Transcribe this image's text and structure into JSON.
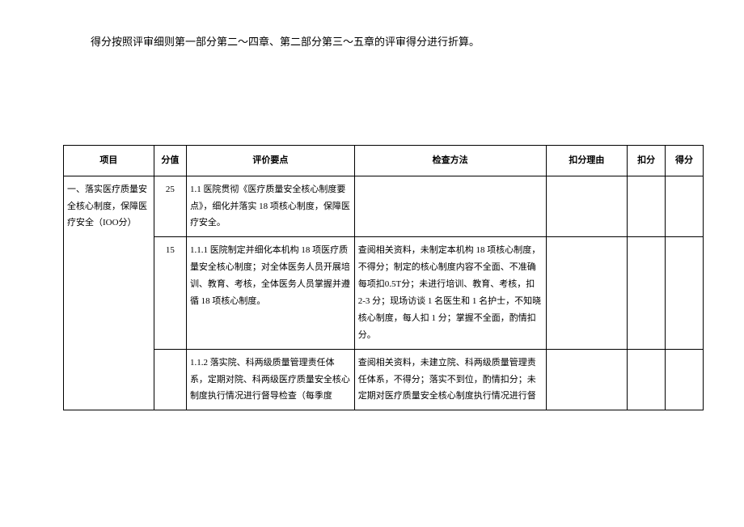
{
  "intro": "得分按照评审细则第一部分第二～四章、第二部分第三～五章的评审得分进行折算。",
  "headers": {
    "item": "项目",
    "score": "分值",
    "points": "评价要点",
    "method": "检查方法",
    "reason": "扣分理由",
    "deduct": "扣分",
    "get": "得分"
  },
  "rows": {
    "r1": {
      "item": "一、落实医疗质量安全核心制度，保障医疗安全（IOO分）",
      "score": "25",
      "points": "1.1 医院贯彻《医疗质量安全核心制度要点》，细化并落实 18 项核心制度，保障医疗安全。",
      "method": "",
      "reason": "",
      "deduct": "",
      "get": ""
    },
    "r2": {
      "item": "",
      "score": "15",
      "points": "1.1.1 医院制定并细化本机构 18 项医疗质量安全核心制度；对全体医务人员开展培训、教育、考核，全体医务人员掌握并遵循 18 项核心制度。",
      "method": "查阅相关资料，未制定本机构 18 项核心制度，不得分；制定的核心制度内容不全面、不准确每项扣0.5T分；未进行培训、教育、考核，扣 2-3 分；现场访谈 1 名医生和 1 名护士，不知晓核心制度，每人扣 1 分；掌握不全面，酌情扣分。",
      "reason": "",
      "deduct": "",
      "get": ""
    },
    "r3": {
      "item": "",
      "score": "",
      "points": "1.1.2 落实院、科两级质量管理责任体系，定期对院、科两级医疗质量安全核心制度执行情况进行督导检查（每季度",
      "method": "查阅相关资料，未建立院、科两级质量管理责任体系，不得分；落实不到位，酌情扣分；未定期对医疗质量安全核心制度执行情况进行督",
      "reason": "",
      "deduct": "",
      "get": ""
    }
  },
  "style": {
    "border_color": "#000000",
    "bg_color": "#ffffff",
    "text_color": "#000000",
    "intro_fontsize": 13,
    "table_fontsize": 11,
    "line_height": 1.9
  }
}
